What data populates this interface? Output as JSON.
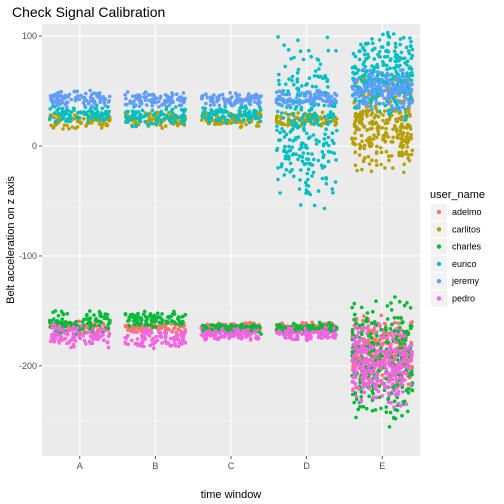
{
  "chart_data": {
    "type": "scatter",
    "title": "Check Signal Calibration",
    "xlabel": "time window",
    "ylabel": "Belt acceleration on z axis",
    "categories": [
      "A",
      "B",
      "C",
      "D",
      "E"
    ],
    "ylim": [
      -282,
      111
    ],
    "yticks": [
      100,
      0,
      -100,
      -200
    ],
    "grid": true,
    "legend_position": "right",
    "legend": {
      "title": "user_name",
      "entries": [
        "adelmo",
        "carlitos",
        "charles",
        "eurico",
        "jeremy",
        "pedro"
      ]
    },
    "series": [
      {
        "name": "adelmo",
        "color": "#F8766D",
        "clusters": [
          {
            "category": "A",
            "y_range": [
              -172,
              -158
            ]
          },
          {
            "category": "B",
            "y_range": [
              -170,
              -160
            ]
          },
          {
            "category": "C",
            "y_range": [
              -170,
              -160
            ]
          },
          {
            "category": "D",
            "y_range": [
              -170,
              -160
            ]
          },
          {
            "category": "E",
            "y_range": [
              -225,
              -150
            ]
          }
        ]
      },
      {
        "name": "carlitos",
        "color": "#B79F00",
        "clusters": [
          {
            "category": "A",
            "y_range": [
              15,
              32
            ]
          },
          {
            "category": "B",
            "y_range": [
              15,
              32
            ]
          },
          {
            "category": "C",
            "y_range": [
              15,
              32
            ]
          },
          {
            "category": "D",
            "y_range": [
              15,
              32
            ]
          },
          {
            "category": "E",
            "y_range": [
              -30,
              70
            ]
          }
        ]
      },
      {
        "name": "charles",
        "color": "#00BA38",
        "clusters": [
          {
            "category": "A",
            "y_range": [
              -172,
              -148
            ]
          },
          {
            "category": "B",
            "y_range": [
              -165,
              -150
            ]
          },
          {
            "category": "C",
            "y_range": [
              -172,
              -160
            ]
          },
          {
            "category": "D",
            "y_range": [
              -172,
              -160
            ]
          },
          {
            "category": "E",
            "y_range": [
              -258,
              -130
            ]
          }
        ]
      },
      {
        "name": "eurico",
        "color": "#00BFC4",
        "clusters": [
          {
            "category": "A",
            "y_range": [
              20,
              38
            ]
          },
          {
            "category": "B",
            "y_range": [
              15,
              38
            ]
          },
          {
            "category": "C",
            "y_range": [
              20,
              38
            ]
          },
          {
            "category": "D",
            "y_range": [
              -60,
              105
            ]
          },
          {
            "category": "E",
            "y_range": [
              20,
              105
            ]
          }
        ]
      },
      {
        "name": "jeremy",
        "color": "#619CFF",
        "clusters": [
          {
            "category": "A",
            "y_range": [
              35,
              52
            ]
          },
          {
            "category": "B",
            "y_range": [
              35,
              50
            ]
          },
          {
            "category": "C",
            "y_range": [
              35,
              50
            ]
          },
          {
            "category": "D",
            "y_range": [
              35,
              52
            ]
          },
          {
            "category": "E",
            "y_range": [
              30,
              72
            ]
          }
        ]
      },
      {
        "name": "pedro",
        "color": "#F564E3",
        "clusters": [
          {
            "category": "A",
            "y_range": [
              -185,
              -160
            ]
          },
          {
            "category": "B",
            "y_range": [
              -185,
              -165
            ]
          },
          {
            "category": "C",
            "y_range": [
              -178,
              -165
            ]
          },
          {
            "category": "D",
            "y_range": [
              -178,
              -165
            ]
          },
          {
            "category": "E",
            "y_range": [
              -240,
              -160
            ]
          }
        ]
      }
    ]
  }
}
